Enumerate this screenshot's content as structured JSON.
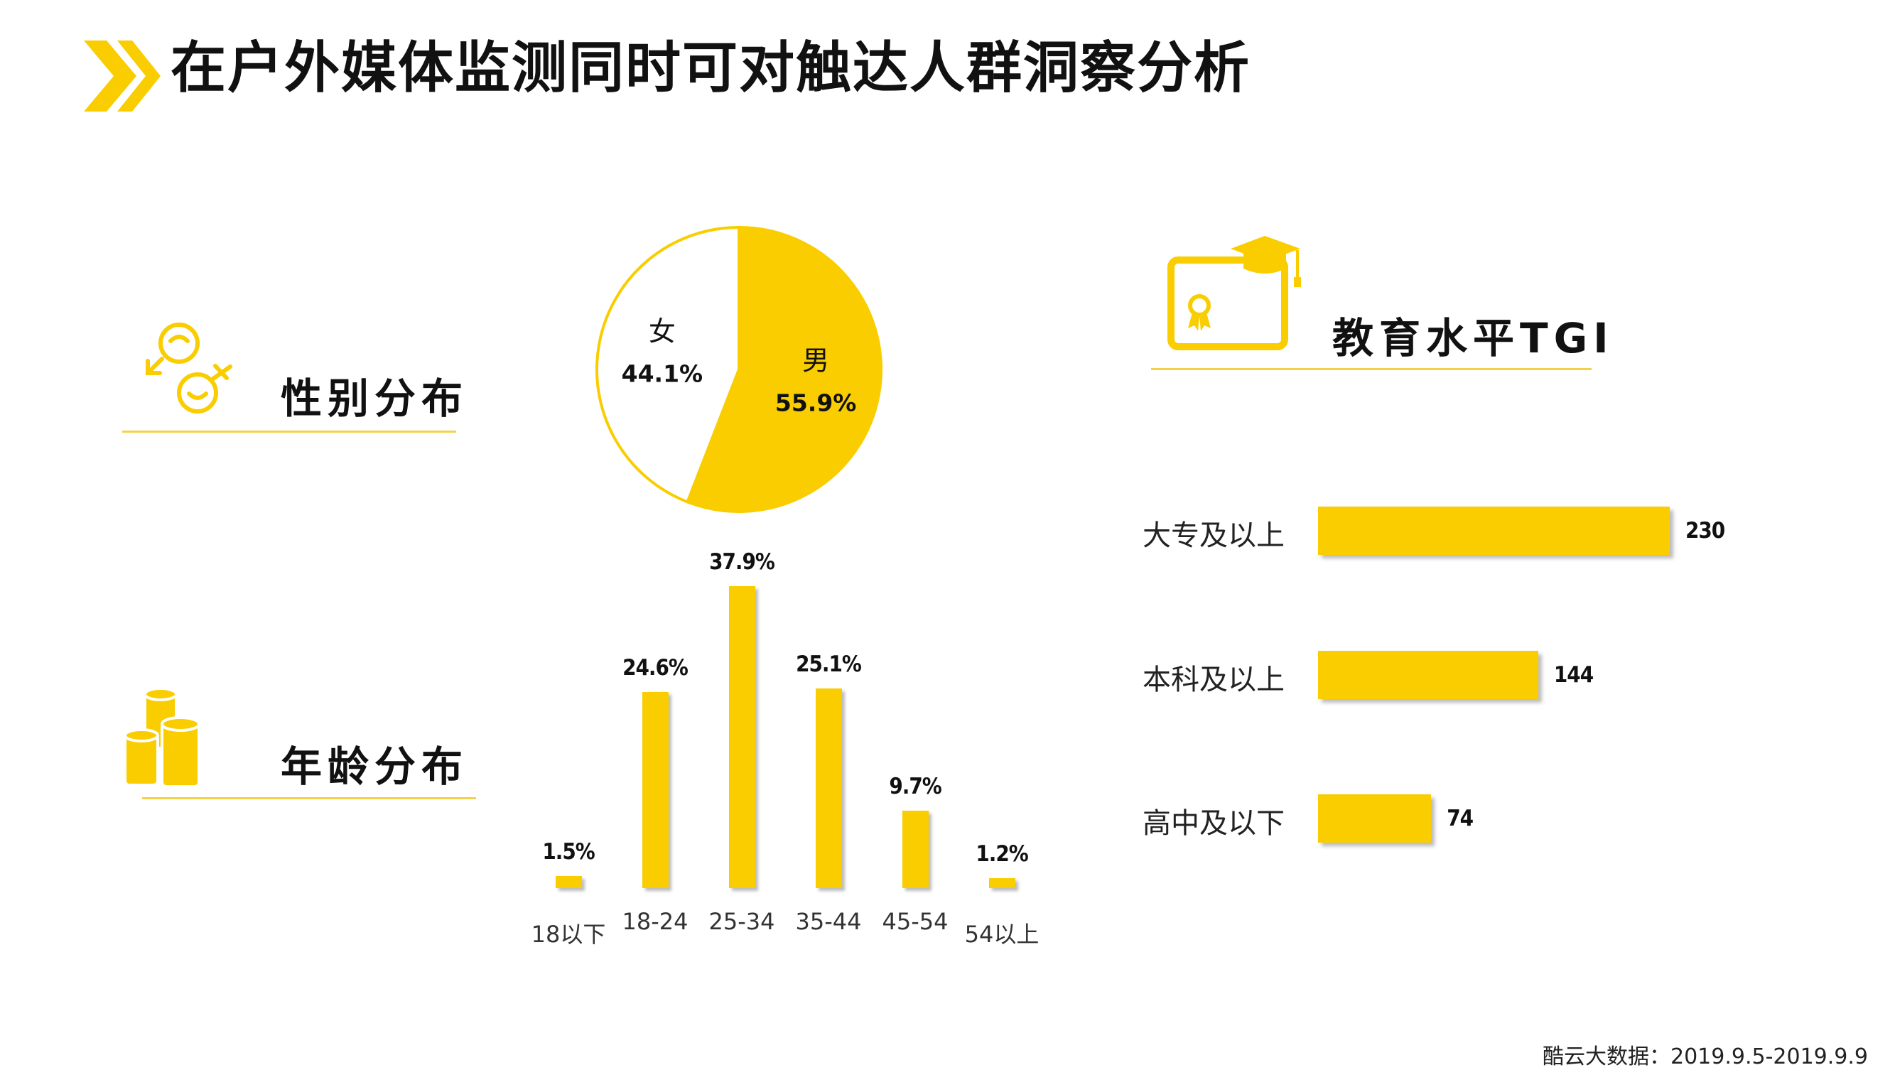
{
  "page_title": "在户外媒体监测同时可对触达人群洞察分析",
  "colors": {
    "accent": "#F9CD00",
    "shadow": "#bdbdbd",
    "underline": "#F3D24A"
  },
  "icons": {
    "title": "double-chevron-right-icon",
    "gender": "gender-symbols-icon",
    "age": "coin-stacks-icon",
    "education": "certificate-graduation-cap-icon"
  },
  "sections": {
    "gender": "性别分布",
    "age": "年龄分布",
    "education": "教育水平TGI"
  },
  "chart_data": [
    {
      "type": "pie",
      "title": "性别分布",
      "labels": [
        "男",
        "女"
      ],
      "values": [
        55.9,
        44.1
      ],
      "value_labels": [
        "55.9%",
        "44.1%"
      ]
    },
    {
      "type": "bar",
      "title": "年龄分布",
      "categories": [
        "18以下",
        "18-24",
        "25-34",
        "35-44",
        "45-54",
        "54以上"
      ],
      "values": [
        1.5,
        24.6,
        37.9,
        25.1,
        9.7,
        1.2
      ],
      "value_labels": [
        "1.5%",
        "24.6%",
        "37.9%",
        "25.1%",
        "9.7%",
        "1.2%"
      ],
      "ylim": [
        0,
        37.9
      ]
    },
    {
      "type": "bar",
      "orientation": "horizontal",
      "title": "教育水平TGI",
      "categories": [
        "大专及以上",
        "本科及以上",
        "高中及以下"
      ],
      "values": [
        230,
        144,
        74
      ],
      "value_labels": [
        "230",
        "144",
        "74"
      ],
      "xlim": [
        0,
        230
      ]
    }
  ],
  "source": "酷云大数据：2019.9.5-2019.9.9"
}
